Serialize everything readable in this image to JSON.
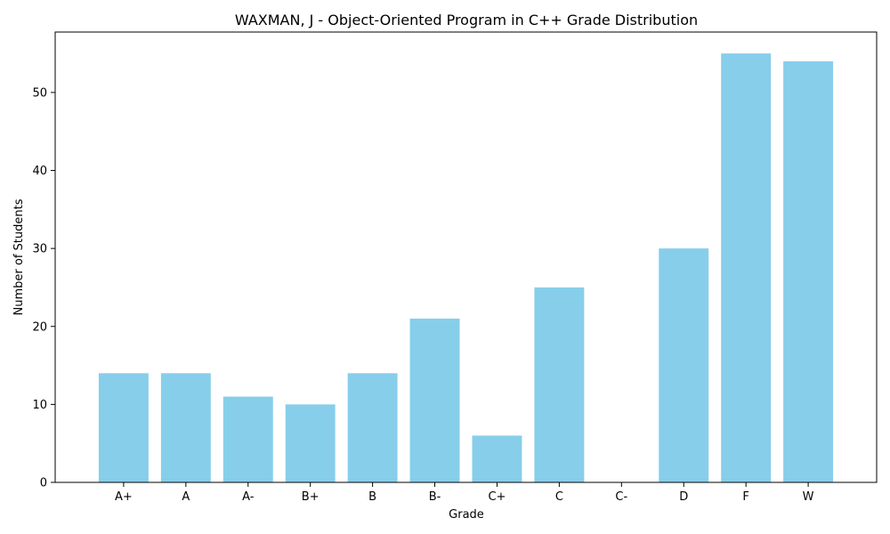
{
  "chart_data": {
    "type": "bar",
    "title": "WAXMAN, J - Object-Oriented Program in C++ Grade Distribution",
    "xlabel": "Grade",
    "ylabel": "Number of Students",
    "categories": [
      "A+",
      "A",
      "A-",
      "B+",
      "B",
      "B-",
      "C+",
      "C",
      "C-",
      "D",
      "F",
      "W"
    ],
    "values": [
      14,
      14,
      11,
      10,
      14,
      21,
      6,
      25,
      0,
      30,
      55,
      54
    ],
    "ylim": [
      0,
      57.75
    ],
    "yticks": [
      0,
      10,
      20,
      30,
      40,
      50
    ],
    "grid": false,
    "legend": "none",
    "bar_color": "#87CEEB"
  }
}
